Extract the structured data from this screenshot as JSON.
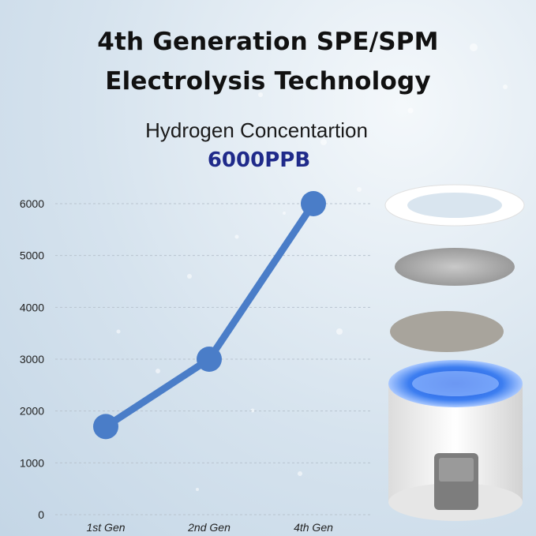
{
  "title_line1": "4th Generation SPE/SPM",
  "title_line2": "Electrolysis Technology",
  "subtitle": "Hydrogen Concentartion",
  "highlight": "6000PPB",
  "colors": {
    "line": "#4a7dc8",
    "highlight": "#1f2a8a",
    "grid": "#b9c4cf"
  },
  "product_image": "electrolysis-cell-exploded-icon",
  "chart_data": {
    "type": "line",
    "categories": [
      "1st Gen",
      "2nd Gen",
      "4th Gen"
    ],
    "series": [
      {
        "values": [
          1700,
          3000,
          6000
        ]
      }
    ],
    "ylim": [
      0,
      6000
    ],
    "yticks": [
      "0",
      "1000",
      "2000",
      "3000",
      "4000",
      "5000",
      "6000"
    ],
    "grid": true,
    "xlabel": "",
    "ylabel": ""
  }
}
